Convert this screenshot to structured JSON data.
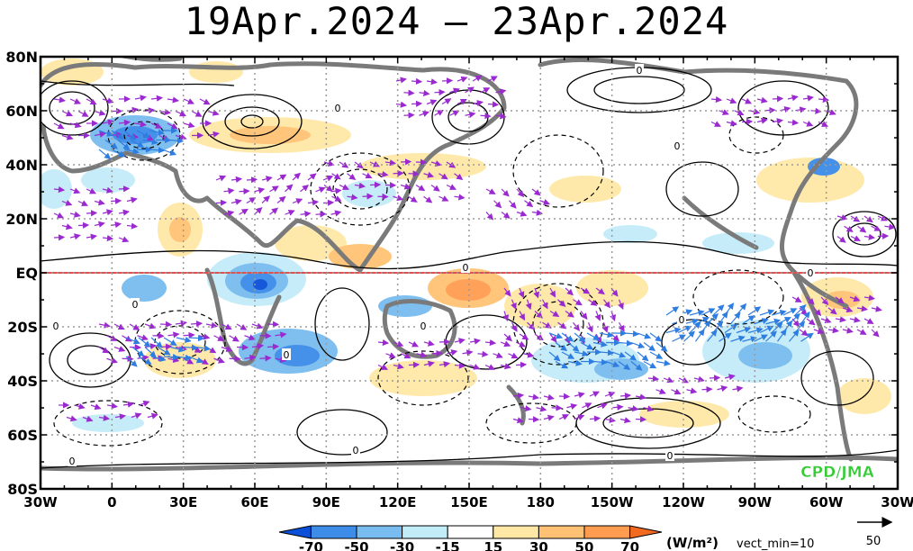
{
  "title": "19Apr.2024 – 23Apr.2024",
  "map": {
    "lat_labels": [
      "80N",
      "60N",
      "40N",
      "20N",
      "EQ",
      "20S",
      "40S",
      "60S",
      "80S"
    ],
    "lon_labels": [
      "30W",
      "0",
      "30E",
      "60E",
      "90E",
      "120E",
      "150E",
      "180",
      "150W",
      "120W",
      "90W",
      "60W",
      "30W"
    ],
    "credit": "CPD/JMA",
    "credit_color": "#33cc33",
    "equator_color": "#e05050",
    "contour_zero_label": "0"
  },
  "colorbar": {
    "tick_labels": [
      "-70",
      "-50",
      "-30",
      "-15",
      "15",
      "30",
      "50",
      "70"
    ],
    "colors": [
      "#0a50d8",
      "#3c8ce8",
      "#78bcf0",
      "#c2ecf8",
      "#ffffff",
      "#ffe8a6",
      "#ffc274",
      "#ff9c50",
      "#f26a20"
    ],
    "units": "(W/m²)",
    "vect_min": "vect_min=10"
  },
  "reference_vector": {
    "label": "50"
  }
}
